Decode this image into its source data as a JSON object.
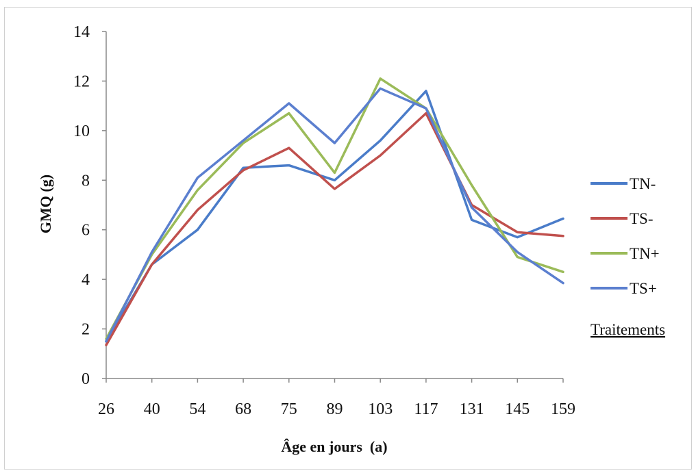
{
  "chart_data": {
    "type": "line",
    "title": "",
    "xlabel": "Âge en jours  (a)",
    "ylabel": "GMQ (g)",
    "categories": [
      "26",
      "40",
      "54",
      "68",
      "75",
      "89",
      "103",
      "117",
      "131",
      "145",
      "159"
    ],
    "ylim": [
      0,
      14
    ],
    "yticks": [
      0,
      2,
      4,
      6,
      8,
      10,
      12,
      14
    ],
    "grid": false,
    "legend_title": "Traitements",
    "legend_position": "right",
    "series": [
      {
        "name": "TN-",
        "color": "#4a7cc9",
        "values": [
          1.5,
          4.6,
          6.0,
          8.5,
          8.6,
          8.0,
          9.6,
          11.6,
          6.4,
          5.7,
          6.45
        ]
      },
      {
        "name": "TS-",
        "color": "#c0504d",
        "values": [
          1.35,
          4.6,
          6.8,
          8.4,
          9.3,
          7.65,
          9.0,
          10.7,
          7.0,
          5.9,
          5.75
        ]
      },
      {
        "name": "TN+",
        "color": "#9bbb59",
        "values": [
          1.6,
          5.0,
          7.6,
          9.5,
          10.7,
          8.3,
          12.1,
          10.9,
          7.8,
          4.9,
          4.3
        ]
      },
      {
        "name": "TS+",
        "color": "#5b7fcf",
        "values": [
          1.5,
          5.1,
          8.1,
          9.6,
          11.1,
          9.5,
          11.7,
          10.9,
          6.9,
          5.1,
          3.85
        ]
      }
    ]
  }
}
